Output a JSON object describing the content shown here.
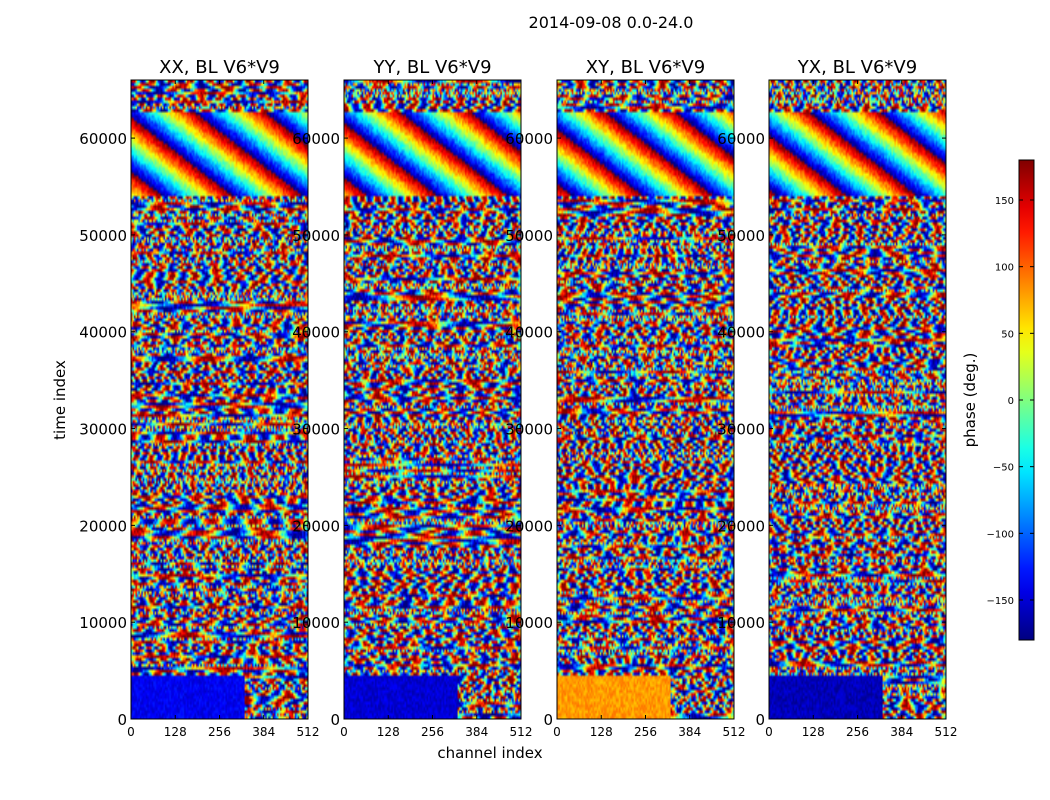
{
  "figure": {
    "suptitle": "2014-09-08 0.0-24.0"
  },
  "chart_data": {
    "type": "heatmap",
    "title": "2014-09-08 0.0-24.0",
    "xlabel": "channel index",
    "ylabel": "time index",
    "xlim": [
      0,
      512
    ],
    "ylim": [
      0,
      66000
    ],
    "x_ticks": [
      "0",
      "128",
      "256",
      "384",
      "512"
    ],
    "x_tick_values": [
      0,
      128,
      256,
      384,
      512
    ],
    "y_ticks": [
      "0",
      "10000",
      "20000",
      "30000",
      "40000",
      "50000",
      "60000"
    ],
    "y_tick_values": [
      0,
      10000,
      20000,
      30000,
      40000,
      50000,
      60000
    ],
    "panels": [
      {
        "title": "XX, BL V6*V9",
        "base_phase": -140
      },
      {
        "title": "YY, BL V6*V9",
        "base_phase": -150
      },
      {
        "title": "XY, BL V6*V9",
        "base_phase": 80
      },
      {
        "title": "YX, BL V6*V9",
        "base_phase": -160
      }
    ],
    "colorbar": {
      "label": "phase (deg.)",
      "range": [
        -180,
        180
      ],
      "ticks": [
        "−150",
        "−100",
        "−50",
        "0",
        "50",
        "100",
        "150"
      ],
      "tick_values": [
        -150,
        -100,
        -50,
        0,
        50,
        100,
        150
      ],
      "colormap": "jet"
    }
  }
}
